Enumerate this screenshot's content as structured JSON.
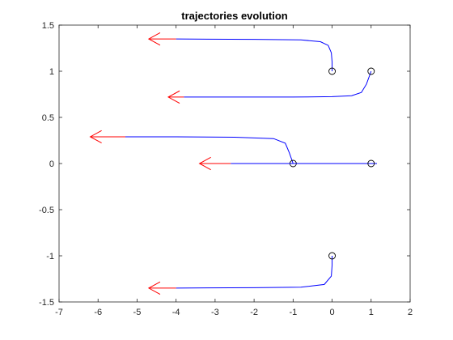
{
  "chart_data": {
    "type": "line",
    "title": "trajectories evolution",
    "xlabel": "",
    "ylabel": "",
    "xlim": [
      -7,
      2
    ],
    "ylim": [
      -1.5,
      1.5
    ],
    "xticks": [
      -7,
      -6,
      -5,
      -4,
      -3,
      -2,
      -1,
      0,
      1,
      2
    ],
    "xtick_labels": [
      "-7",
      "-6",
      "-5",
      "-4",
      "-3",
      "-2",
      "-1",
      "0",
      "1",
      "2"
    ],
    "yticks": [
      -1.5,
      -1,
      -0.5,
      0,
      0.5,
      1,
      1.5
    ],
    "ytick_labels": [
      "-1.5",
      "-1",
      "-0.5",
      "0",
      "0.5",
      "1",
      "1.5"
    ],
    "grid": false,
    "trajectory_color": "#0000ff",
    "arrow_color": "#ff0000",
    "start_marker_color": "#000000",
    "trajectories": [
      {
        "start": [
          0,
          1
        ],
        "points": [
          [
            0,
            1
          ],
          [
            0,
            1.1
          ],
          [
            -0.02,
            1.2
          ],
          [
            -0.1,
            1.28
          ],
          [
            -0.3,
            1.32
          ],
          [
            -0.8,
            1.34
          ],
          [
            -2,
            1.345
          ],
          [
            -4,
            1.35
          ]
        ],
        "arrow": {
          "from": [
            -4,
            1.35
          ],
          "to": [
            -4.7,
            1.35
          ]
        }
      },
      {
        "start": [
          1,
          1
        ],
        "points": [
          [
            1,
            1
          ],
          [
            0.88,
            0.86
          ],
          [
            0.75,
            0.77
          ],
          [
            0.5,
            0.735
          ],
          [
            0,
            0.725
          ],
          [
            -1,
            0.72
          ],
          [
            -2.5,
            0.72
          ],
          [
            -3.8,
            0.72
          ]
        ],
        "arrow": {
          "from": [
            -3.8,
            0.72
          ],
          "to": [
            -4.2,
            0.72
          ]
        }
      },
      {
        "start": [
          -1,
          0
        ],
        "points": [
          [
            -1,
            0
          ],
          [
            -1.1,
            0.12
          ],
          [
            -1.2,
            0.22
          ],
          [
            -1.5,
            0.27
          ],
          [
            -2.5,
            0.285
          ],
          [
            -4,
            0.29
          ],
          [
            -5.3,
            0.29
          ]
        ],
        "arrow": {
          "from": [
            -5.3,
            0.29
          ],
          "to": [
            -6.2,
            0.29
          ]
        }
      },
      {
        "start": [
          1,
          0
        ],
        "points": [
          [
            1.15,
            0
          ],
          [
            1,
            0
          ],
          [
            0,
            0
          ],
          [
            -1,
            0
          ],
          [
            -2,
            0
          ],
          [
            -2.6,
            0
          ]
        ],
        "arrow": {
          "from": [
            -2.6,
            0
          ],
          "to": [
            -3.4,
            0
          ]
        }
      },
      {
        "start": [
          0,
          -1
        ],
        "points": [
          [
            0,
            -1
          ],
          [
            0,
            -1.1
          ],
          [
            -0.02,
            -1.22
          ],
          [
            -0.2,
            -1.31
          ],
          [
            -0.8,
            -1.34
          ],
          [
            -2,
            -1.345
          ],
          [
            -4,
            -1.35
          ]
        ],
        "arrow": {
          "from": [
            -4,
            -1.35
          ],
          "to": [
            -4.7,
            -1.35
          ]
        }
      }
    ]
  }
}
